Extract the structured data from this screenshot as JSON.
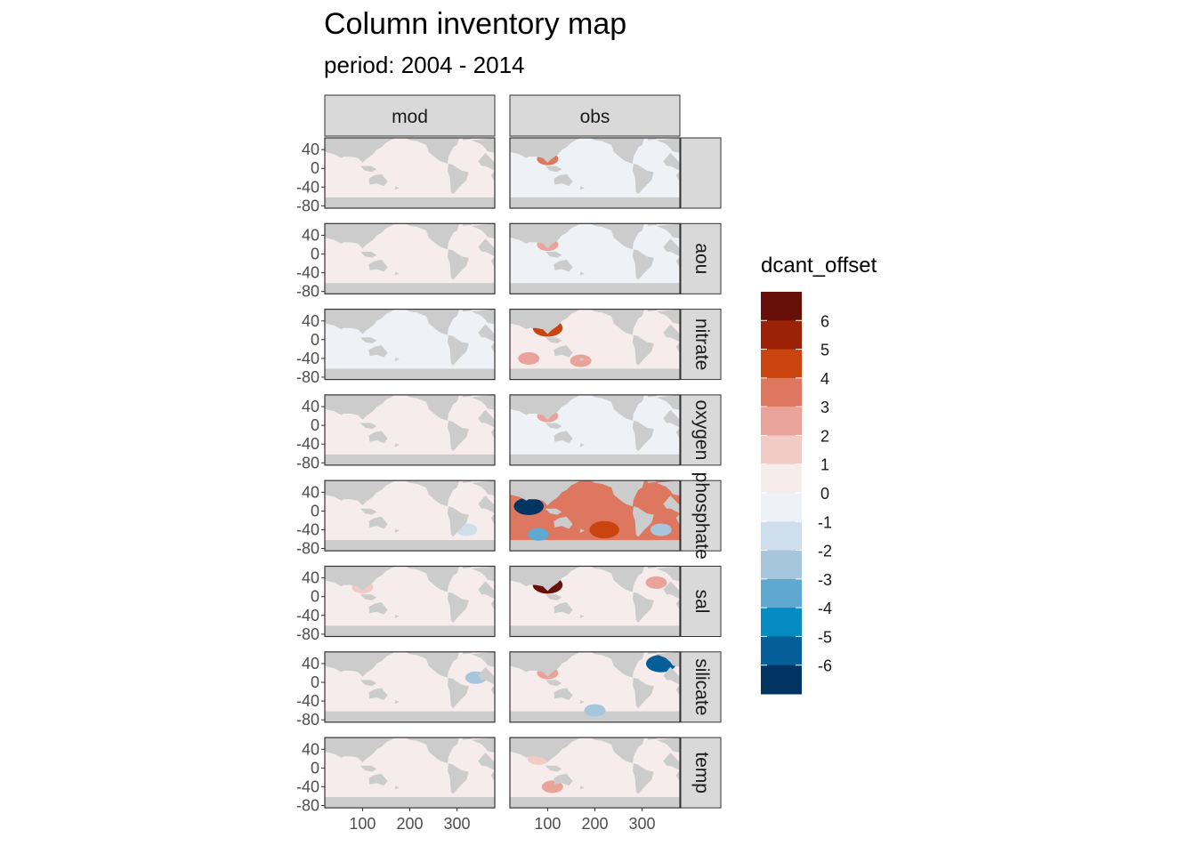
{
  "title": "Column inventory map",
  "subtitle": "period: 2004 - 2014",
  "chart_data": {
    "type": "heatmap",
    "facet_columns": [
      "mod",
      "obs"
    ],
    "facet_rows": [
      "",
      "aou",
      "nitrate",
      "oxygen",
      "phosphate",
      "sal",
      "silicate",
      "temp"
    ],
    "x_ticks": [
      100,
      200,
      300
    ],
    "y_ticks": [
      40,
      0,
      -40,
      -80
    ],
    "xlim": [
      20,
      380
    ],
    "ylim": [
      -85,
      65
    ],
    "legend": {
      "title": "dcant_offset",
      "placement": "right",
      "labels": [
        6,
        5,
        4,
        3,
        2,
        1,
        0,
        -1,
        -2,
        -3,
        -4,
        -5,
        -6
      ],
      "colors": [
        "#67100a",
        "#9b2206",
        "#c9440f",
        "#dd7760",
        "#e9a39a",
        "#f1cbc6",
        "#f7ecec",
        "#eef2f6",
        "#cfdeeb",
        "#a6c6de",
        "#5fa9d0",
        "#048bc2",
        "#055e97",
        "#003561"
      ]
    },
    "panels": [
      {
        "column": "mod",
        "row": "",
        "base": 0.25,
        "features": []
      },
      {
        "column": "obs",
        "row": "",
        "base": 0.0,
        "features": [
          {
            "lon": 100,
            "lat": 20,
            "value": 4
          }
        ]
      },
      {
        "column": "mod",
        "row": "aou",
        "base": 0.25,
        "features": []
      },
      {
        "column": "obs",
        "row": "aou",
        "base": 0.0,
        "features": [
          {
            "lon": 100,
            "lat": 20,
            "value": 3
          }
        ]
      },
      {
        "column": "mod",
        "row": "nitrate",
        "base": 0.0,
        "features": []
      },
      {
        "column": "obs",
        "row": "nitrate",
        "base": 0.2,
        "features": [
          {
            "lon": 100,
            "lat": 25,
            "value": 5
          },
          {
            "lon": 60,
            "lat": -40,
            "value": 3
          },
          {
            "lon": 170,
            "lat": -45,
            "value": 3
          }
        ]
      },
      {
        "column": "mod",
        "row": "oxygen",
        "base": 0.25,
        "features": []
      },
      {
        "column": "obs",
        "row": "oxygen",
        "base": 0.0,
        "features": [
          {
            "lon": 100,
            "lat": 20,
            "value": 3
          }
        ]
      },
      {
        "column": "mod",
        "row": "phosphate",
        "base": 0.5,
        "features": [
          {
            "lon": 320,
            "lat": -40,
            "value": -1.5
          }
        ]
      },
      {
        "column": "obs",
        "row": "phosphate",
        "base": 3.5,
        "features": [
          {
            "lon": 60,
            "lat": 10,
            "value": -6
          },
          {
            "lon": 340,
            "lat": -40,
            "value": -2
          },
          {
            "lon": 80,
            "lat": -50,
            "value": -3
          },
          {
            "lon": 220,
            "lat": -40,
            "value": 5
          }
        ]
      },
      {
        "column": "mod",
        "row": "sal",
        "base": 0.5,
        "features": [
          {
            "lon": 100,
            "lat": 20,
            "value": 2
          }
        ]
      },
      {
        "column": "obs",
        "row": "sal",
        "base": 0.5,
        "features": [
          {
            "lon": 100,
            "lat": 25,
            "value": 6
          },
          {
            "lon": 330,
            "lat": 30,
            "value": 3
          }
        ]
      },
      {
        "column": "mod",
        "row": "silicate",
        "base": 0.25,
        "features": [
          {
            "lon": 340,
            "lat": 10,
            "value": -2
          }
        ]
      },
      {
        "column": "obs",
        "row": "silicate",
        "base": 0.25,
        "features": [
          {
            "lon": 100,
            "lat": 20,
            "value": 3
          },
          {
            "lon": 340,
            "lat": 40,
            "value": -5
          },
          {
            "lon": 200,
            "lat": -60,
            "value": -2
          }
        ]
      },
      {
        "column": "mod",
        "row": "temp",
        "base": 0.5,
        "features": []
      },
      {
        "column": "obs",
        "row": "temp",
        "base": 0.5,
        "features": [
          {
            "lon": 80,
            "lat": 20,
            "value": 2
          },
          {
            "lon": 110,
            "lat": -40,
            "value": 3
          }
        ]
      }
    ]
  }
}
